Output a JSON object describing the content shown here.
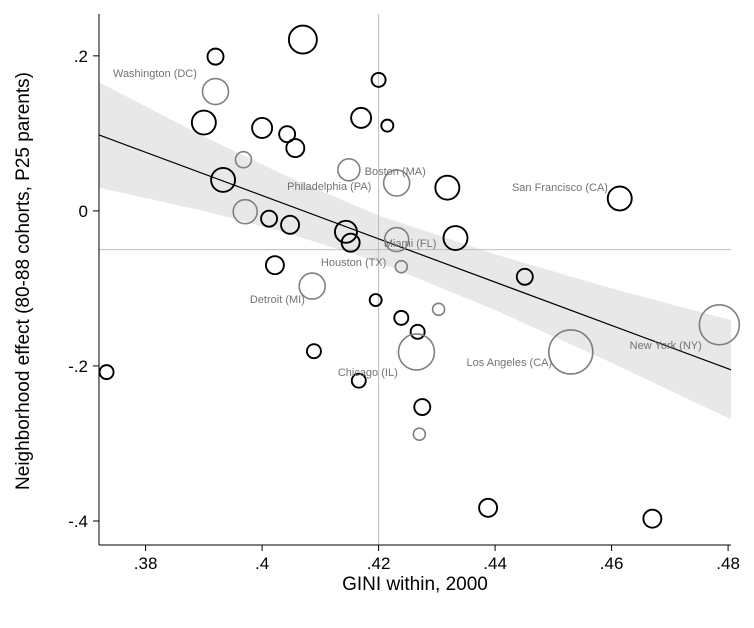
{
  "chart_data": {
    "type": "scatter",
    "title": "",
    "xlabel": "GINI within, 2000",
    "ylabel": "Neighborhood effect (80-88 cohorts, P25 parents)",
    "xlim": [
      0.372,
      0.4805
    ],
    "ylim": [
      -0.431,
      0.254
    ],
    "x_ticks": [
      0.38,
      0.4,
      0.42,
      0.44,
      0.46,
      0.48
    ],
    "x_tick_labels": [
      ".38",
      ".4",
      ".42",
      ".44",
      ".46",
      ".48"
    ],
    "y_ticks": [
      0.2,
      0.0,
      -0.2,
      -0.4
    ],
    "y_tick_labels": [
      ".2",
      "0",
      "-.2",
      "-.4"
    ],
    "grid": false,
    "legend": "none",
    "ref_x": 0.42,
    "ref_y": -0.05,
    "fit": {
      "x1": 0.372,
      "y1": 0.098,
      "x2": 0.4805,
      "y2": -0.205
    },
    "band": {
      "x": [
        0.372,
        0.39,
        0.405,
        0.42,
        0.44,
        0.46,
        0.4805
      ],
      "upper": [
        0.166,
        0.096,
        0.042,
        -0.006,
        -0.056,
        -0.1,
        -0.141
      ],
      "lower": [
        0.03,
        0.0,
        -0.03,
        -0.066,
        -0.128,
        -0.196,
        -0.269
      ]
    },
    "points": [
      {
        "x": 0.407,
        "y": 0.221,
        "r": 14,
        "c": "black"
      },
      {
        "x": 0.392,
        "y": 0.199,
        "r": 8,
        "c": "black"
      },
      {
        "x": 0.392,
        "y": 0.154,
        "r": 13,
        "c": "gray"
      },
      {
        "x": 0.42,
        "y": 0.169,
        "r": 7,
        "c": "black"
      },
      {
        "x": 0.39,
        "y": 0.114,
        "r": 12,
        "c": "black"
      },
      {
        "x": 0.4,
        "y": 0.107,
        "r": 10,
        "c": "black"
      },
      {
        "x": 0.4043,
        "y": 0.099,
        "r": 8,
        "c": "black"
      },
      {
        "x": 0.4057,
        "y": 0.081,
        "r": 9,
        "c": "black"
      },
      {
        "x": 0.417,
        "y": 0.12,
        "r": 10,
        "c": "black"
      },
      {
        "x": 0.4215,
        "y": 0.11,
        "r": 6,
        "c": "black"
      },
      {
        "x": 0.3968,
        "y": 0.066,
        "r": 8,
        "c": "gray"
      },
      {
        "x": 0.3933,
        "y": 0.04,
        "r": 12,
        "c": "black"
      },
      {
        "x": 0.4149,
        "y": 0.053,
        "r": 11,
        "c": "gray"
      },
      {
        "x": 0.4231,
        "y": 0.036,
        "r": 13,
        "c": "gray"
      },
      {
        "x": 0.4318,
        "y": 0.03,
        "r": 12,
        "c": "black"
      },
      {
        "x": 0.4614,
        "y": 0.016,
        "r": 12,
        "c": "black"
      },
      {
        "x": 0.3971,
        "y": -0.001,
        "r": 12,
        "c": "gray"
      },
      {
        "x": 0.4012,
        "y": -0.01,
        "r": 8,
        "c": "black"
      },
      {
        "x": 0.4048,
        "y": -0.018,
        "r": 9,
        "c": "black"
      },
      {
        "x": 0.4144,
        "y": -0.027,
        "r": 11,
        "c": "black"
      },
      {
        "x": 0.4152,
        "y": -0.041,
        "r": 9,
        "c": "black"
      },
      {
        "x": 0.4231,
        "y": -0.037,
        "r": 12,
        "c": "gray"
      },
      {
        "x": 0.4332,
        "y": -0.035,
        "r": 12,
        "c": "black"
      },
      {
        "x": 0.4022,
        "y": -0.07,
        "r": 9,
        "c": "black"
      },
      {
        "x": 0.4239,
        "y": -0.072,
        "r": 6,
        "c": "gray"
      },
      {
        "x": 0.4086,
        "y": -0.097,
        "r": 13,
        "c": "gray"
      },
      {
        "x": 0.4451,
        "y": -0.085,
        "r": 8,
        "c": "black"
      },
      {
        "x": 0.4195,
        "y": -0.115,
        "r": 6,
        "c": "black"
      },
      {
        "x": 0.4239,
        "y": -0.138,
        "r": 7,
        "c": "black"
      },
      {
        "x": 0.4303,
        "y": -0.127,
        "r": 6,
        "c": "gray"
      },
      {
        "x": 0.4267,
        "y": -0.156,
        "r": 7,
        "c": "black"
      },
      {
        "x": 0.4089,
        "y": -0.181,
        "r": 7,
        "c": "black"
      },
      {
        "x": 0.4265,
        "y": -0.182,
        "r": 18,
        "c": "gray"
      },
      {
        "x": 0.453,
        "y": -0.182,
        "r": 22,
        "c": "gray"
      },
      {
        "x": 0.4785,
        "y": -0.147,
        "r": 20,
        "c": "gray"
      },
      {
        "x": 0.3733,
        "y": -0.208,
        "r": 7,
        "c": "black"
      },
      {
        "x": 0.4166,
        "y": -0.219,
        "r": 7,
        "c": "black"
      },
      {
        "x": 0.4275,
        "y": -0.253,
        "r": 8,
        "c": "black"
      },
      {
        "x": 0.427,
        "y": -0.288,
        "r": 6,
        "c": "gray"
      },
      {
        "x": 0.4388,
        "y": -0.383,
        "r": 9,
        "c": "black"
      },
      {
        "x": 0.467,
        "y": -0.397,
        "r": 9,
        "c": "black"
      }
    ],
    "labels": [
      {
        "text": "Washington (DC)",
        "x": 0.3744,
        "y": 0.173
      },
      {
        "text": "Boston (MA)",
        "x": 0.4176,
        "y": 0.0465
      },
      {
        "text": "Philadelphia (PA)",
        "x": 0.4043,
        "y": 0.0271
      },
      {
        "text": "San Francisco (CA)",
        "x": 0.4429,
        "y": 0.0258
      },
      {
        "text": "Miami (FL)",
        "x": 0.4209,
        "y": -0.0465
      },
      {
        "text": "Houston (TX)",
        "x": 0.4101,
        "y": -0.071
      },
      {
        "text": "Detroit (MI)",
        "x": 0.3979,
        "y": -0.1187
      },
      {
        "text": "Chicago (IL)",
        "x": 0.413,
        "y": -0.2129
      },
      {
        "text": "Los Angeles (CA)",
        "x": 0.4351,
        "y": -0.2
      },
      {
        "text": "New York (NY)",
        "x": 0.4631,
        "y": -0.1781
      }
    ],
    "colors": {
      "band": "#e8e8e8",
      "ref": "#bdbdbd",
      "line": "#000000",
      "point_black": "#000000",
      "point_gray": "#808080",
      "label": "#737373",
      "axis": "#000000"
    }
  }
}
